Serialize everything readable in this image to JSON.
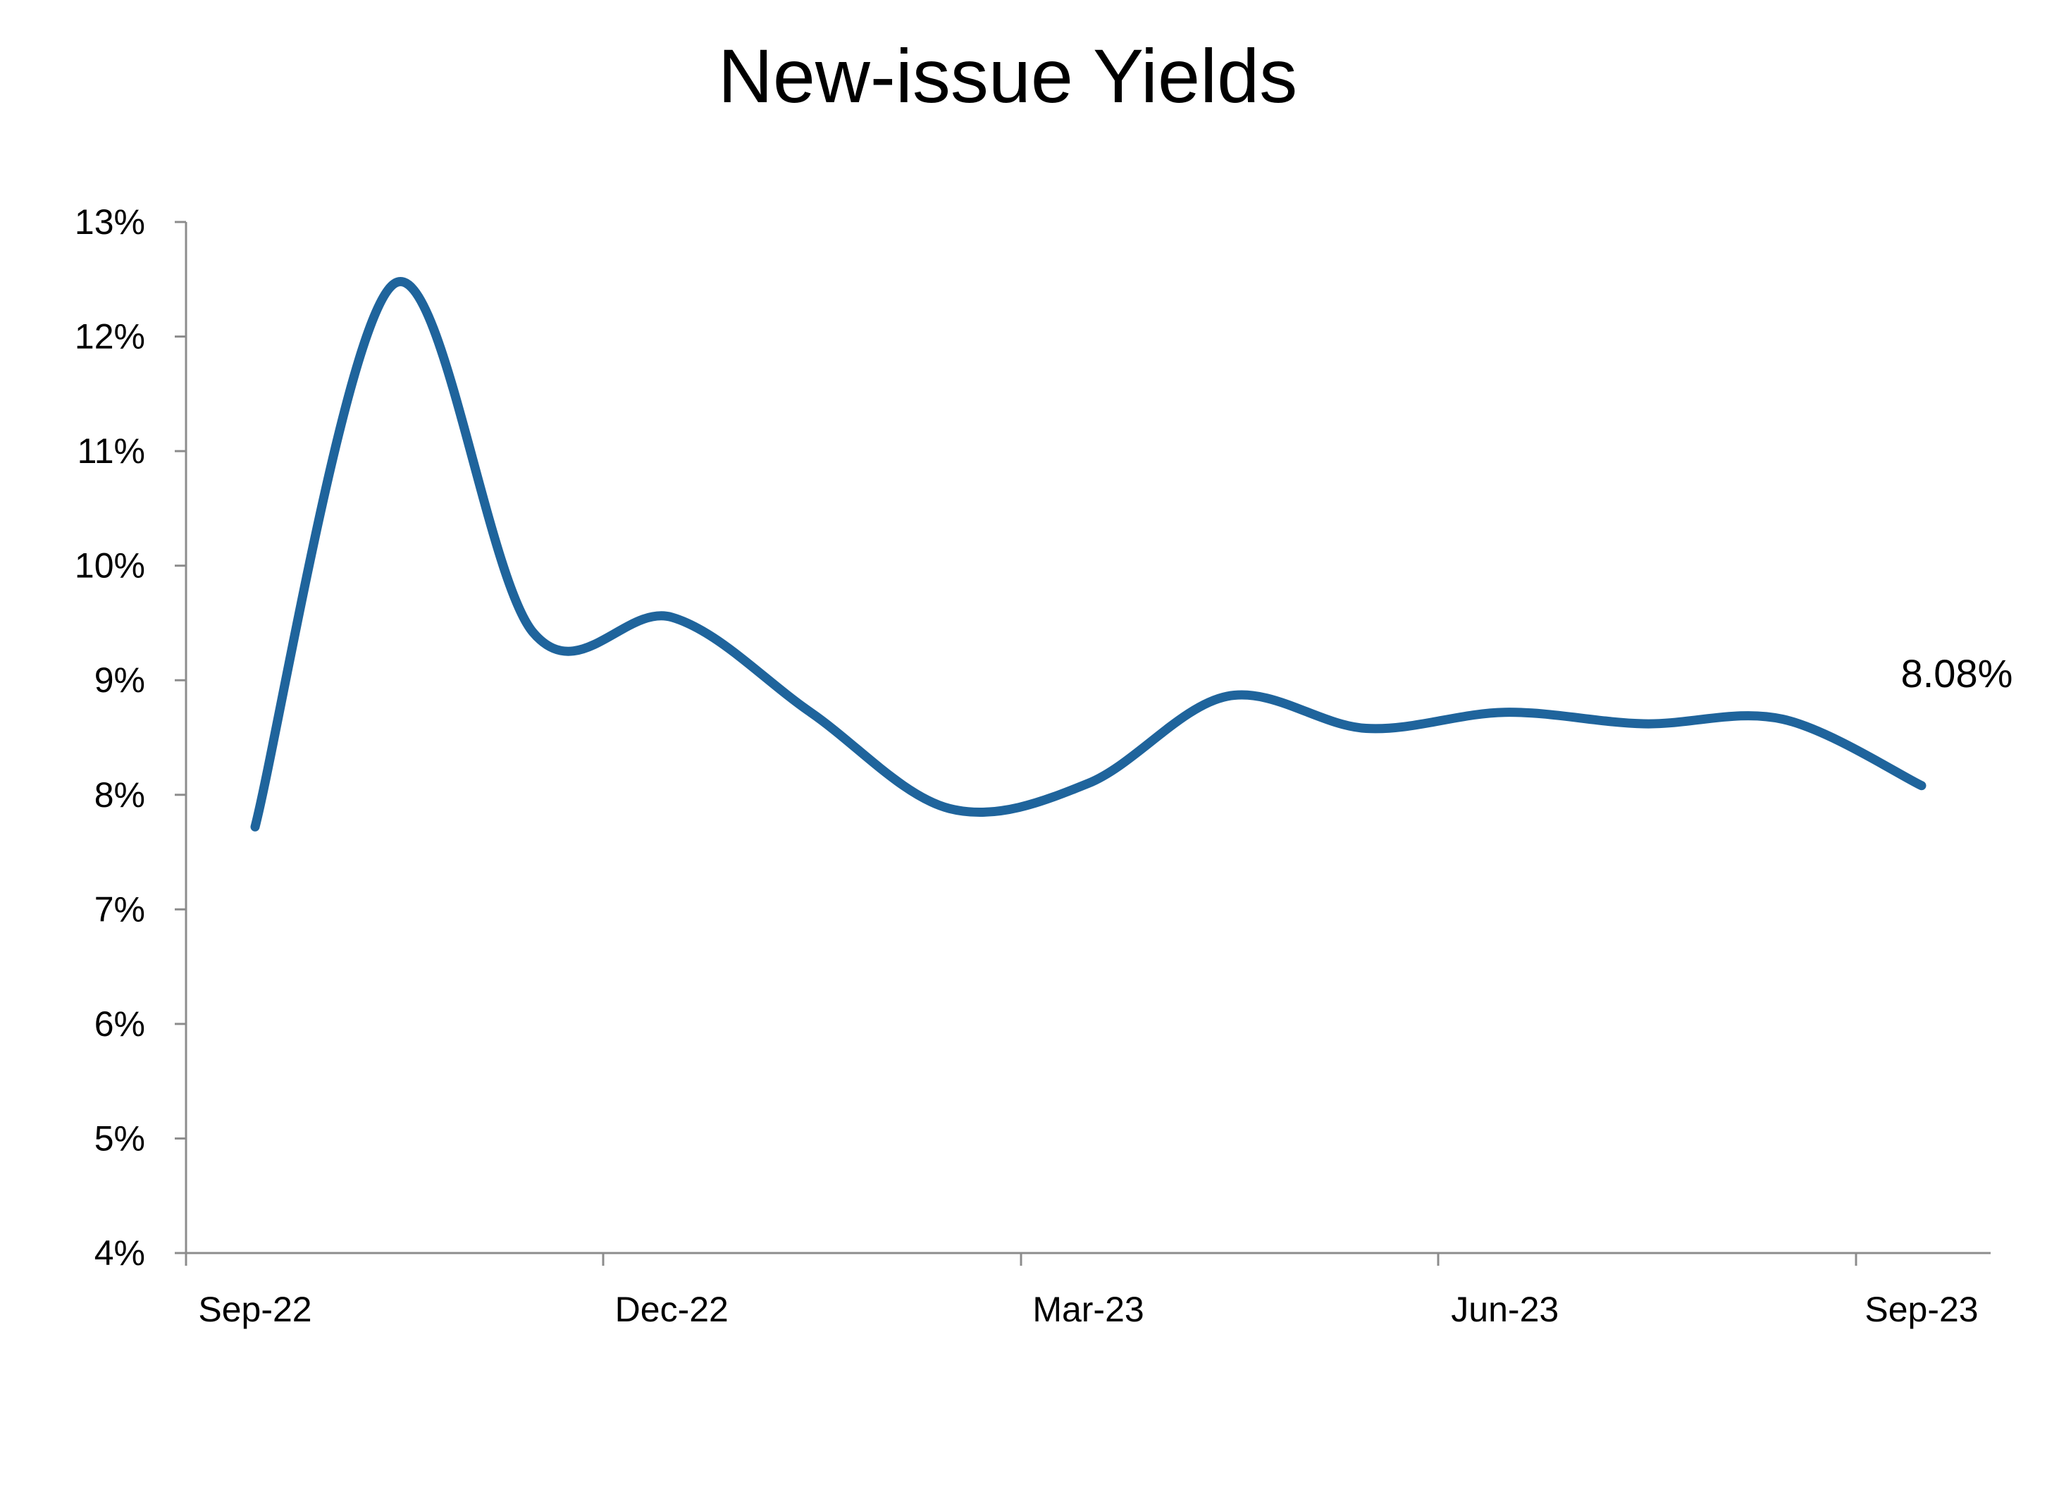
{
  "chart_data": {
    "type": "line",
    "title": "New-issue Yields",
    "xlabel": "",
    "ylabel": "",
    "x_tick_labels": [
      "Sep-22",
      "Dec-22",
      "Mar-23",
      "Jun-23",
      "Sep-23"
    ],
    "y_tick_labels": [
      "4%",
      "5%",
      "6%",
      "7%",
      "8%",
      "9%",
      "10%",
      "11%",
      "12%",
      "13%"
    ],
    "ylim": [
      4,
      13
    ],
    "y_unit": "%",
    "grid": false,
    "legend": "none",
    "line_color": "#1F649C",
    "series": [
      {
        "x": [
          "Sep-22",
          "Oct-22",
          "Nov-22",
          "Dec-22",
          "Jan-23",
          "Feb-23",
          "Mar-23",
          "Apr-23",
          "May-23",
          "Jun-23",
          "Jul-23",
          "Aug-23",
          "Sep-23"
        ],
        "values": [
          7.72,
          12.46,
          9.42,
          9.55,
          8.72,
          7.88,
          8.1,
          8.86,
          8.58,
          8.72,
          8.62,
          8.66,
          8.08
        ]
      }
    ],
    "annotations": [
      {
        "series_point": 12,
        "text": "8.08%"
      }
    ]
  }
}
